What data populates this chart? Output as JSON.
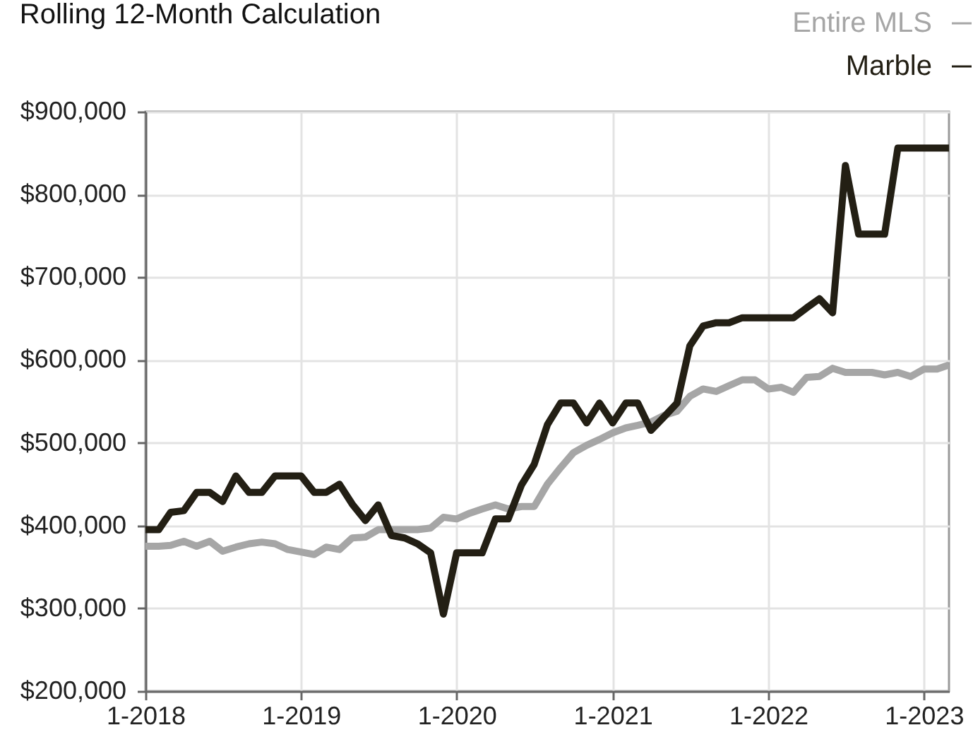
{
  "chart_data": {
    "type": "line",
    "title": "Rolling 12-Month Calculation",
    "x": [
      "2018-01",
      "2018-02",
      "2018-03",
      "2018-04",
      "2018-05",
      "2018-06",
      "2018-07",
      "2018-08",
      "2018-09",
      "2018-10",
      "2018-11",
      "2018-12",
      "2019-01",
      "2019-02",
      "2019-03",
      "2019-04",
      "2019-05",
      "2019-06",
      "2019-07",
      "2019-08",
      "2019-09",
      "2019-10",
      "2019-11",
      "2019-12",
      "2020-01",
      "2020-02",
      "2020-03",
      "2020-04",
      "2020-05",
      "2020-06",
      "2020-07",
      "2020-08",
      "2020-09",
      "2020-10",
      "2020-11",
      "2020-12",
      "2021-01",
      "2021-02",
      "2021-03",
      "2021-04",
      "2021-05",
      "2021-06",
      "2021-07",
      "2021-08",
      "2021-09",
      "2021-10",
      "2021-11",
      "2021-12",
      "2022-01",
      "2022-02",
      "2022-03",
      "2022-04",
      "2022-05",
      "2022-06",
      "2022-07",
      "2022-08",
      "2022-09",
      "2022-10",
      "2022-11",
      "2022-12",
      "2023-01",
      "2023-02",
      "2023-03"
    ],
    "series": [
      {
        "name": "Entire MLS",
        "color": "#a6a6a6",
        "values": [
          375000,
          375000,
          376000,
          381000,
          375000,
          381000,
          369000,
          374000,
          378000,
          380000,
          378000,
          371000,
          368000,
          365000,
          374000,
          371000,
          385000,
          386000,
          395000,
          395000,
          395000,
          395000,
          397000,
          410000,
          408000,
          415000,
          420000,
          425000,
          420000,
          423000,
          423000,
          450000,
          470000,
          488000,
          497000,
          504000,
          512000,
          518000,
          521000,
          525000,
          533000,
          538000,
          556000,
          565000,
          562000,
          569000,
          576000,
          576000,
          565000,
          567000,
          561000,
          579000,
          580000,
          590000,
          585000,
          585000,
          585000,
          582000,
          585000,
          580000,
          589000,
          589000,
          594000
        ]
      },
      {
        "name": "Marble",
        "color": "#231f14",
        "values": [
          395000,
          395000,
          416000,
          418000,
          440000,
          440000,
          429000,
          460000,
          440000,
          440000,
          460000,
          460000,
          460000,
          440000,
          440000,
          450000,
          426000,
          406000,
          425000,
          388000,
          385000,
          378000,
          367000,
          293000,
          367000,
          367000,
          367000,
          408000,
          408000,
          449000,
          474000,
          522000,
          548000,
          548000,
          524000,
          548000,
          524000,
          548000,
          548000,
          515000,
          531000,
          548000,
          617000,
          641000,
          645000,
          645000,
          651000,
          651000,
          651000,
          651000,
          651000,
          663000,
          674000,
          657000,
          835000,
          752000,
          752000,
          752000,
          856000,
          856000,
          856000,
          856000,
          856000
        ]
      }
    ],
    "xlim": [
      "2018-01",
      "2023-03"
    ],
    "xticks": [
      {
        "value": "2018-01",
        "label": "1-2018"
      },
      {
        "value": "2019-01",
        "label": "1-2019"
      },
      {
        "value": "2020-01",
        "label": "1-2020"
      },
      {
        "value": "2021-01",
        "label": "1-2021"
      },
      {
        "value": "2022-01",
        "label": "1-2022"
      },
      {
        "value": "2023-01",
        "label": "1-2023"
      }
    ],
    "ylim": [
      200000,
      900000
    ],
    "yticks": [
      {
        "value": 200000,
        "label": "$200,000"
      },
      {
        "value": 300000,
        "label": "$300,000"
      },
      {
        "value": 400000,
        "label": "$400,000"
      },
      {
        "value": 500000,
        "label": "$500,000"
      },
      {
        "value": 600000,
        "label": "$600,000"
      },
      {
        "value": 700000,
        "label": "$700,000"
      },
      {
        "value": 800000,
        "label": "$800,000"
      },
      {
        "value": 900000,
        "label": "$900,000"
      }
    ],
    "grid": true,
    "legend": "top right"
  }
}
